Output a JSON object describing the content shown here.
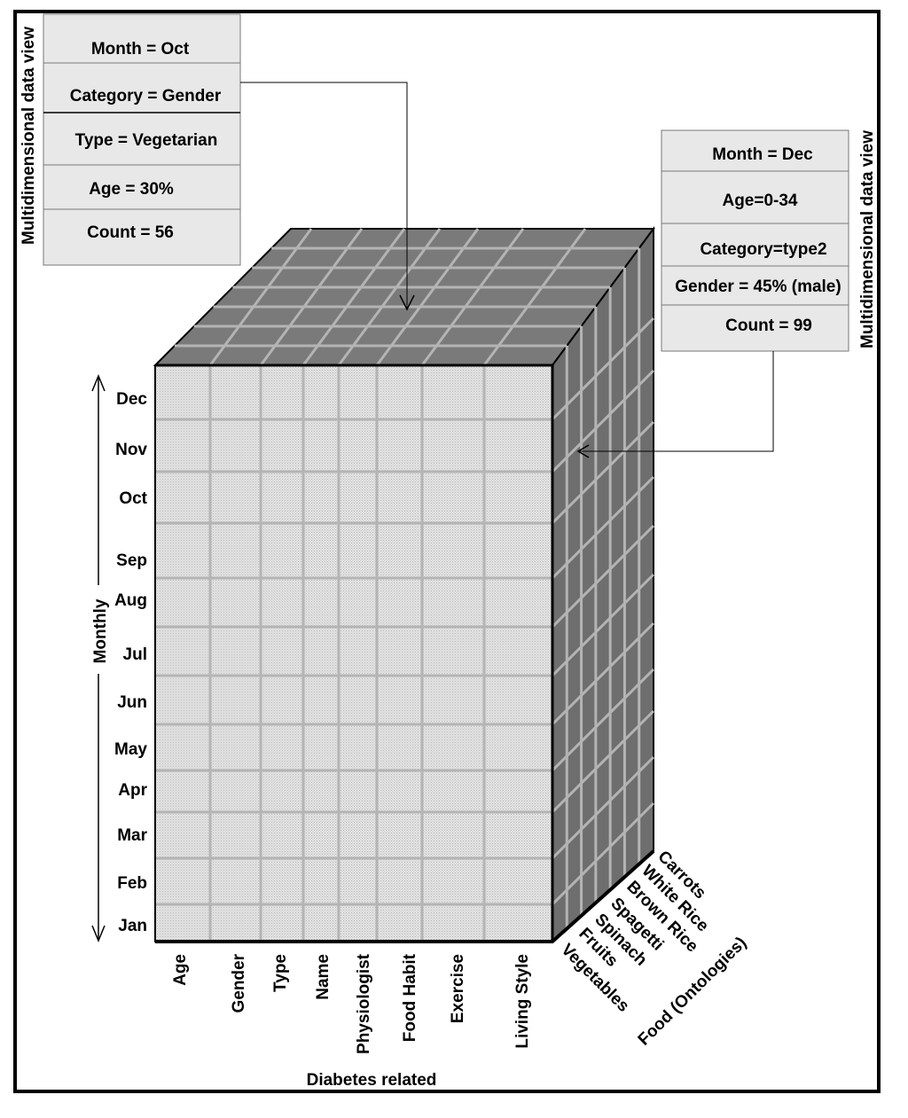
{
  "left_panel": {
    "side_title": "Multidimensional data view",
    "rows": [
      "Month = Oct",
      "Category = Gender",
      "Type = Vegetarian",
      "Age = 30%",
      "Count = 56"
    ]
  },
  "right_panel": {
    "side_title": "Multidimensional data view",
    "rows": [
      "Month = Dec",
      "Age=0-34",
      "Category=type2",
      "Gender = 45% (male)",
      "Count = 99"
    ]
  },
  "months": [
    "Dec",
    "Nov",
    "Oct",
    "Sep",
    "Aug",
    "Jul",
    "Jun",
    "May",
    "Apr",
    "Mar",
    "Feb",
    "Jan"
  ],
  "monthly_axis_label": "Monthly",
  "diabetes_columns": [
    "Age",
    "Gender",
    "Type",
    "Name",
    "Physiologist",
    "Food Habit",
    "Exercise",
    "Living Style"
  ],
  "diabetes_axis_label": "Diabetes related",
  "food_items": [
    "Vegetables",
    "Fruits",
    "Spinach",
    "Spagetti",
    "Brown Rice",
    "White Rice",
    "Carrots"
  ],
  "food_axis_label": "Food (Ontologies)",
  "colors": {
    "front_face": "#d6d6d6",
    "top_face": "#7a7a7a",
    "side_face": "#6e6e6e",
    "grid_line": "#b4b4b4",
    "panel_fill": "#e8e8e8",
    "border": "#000000"
  }
}
